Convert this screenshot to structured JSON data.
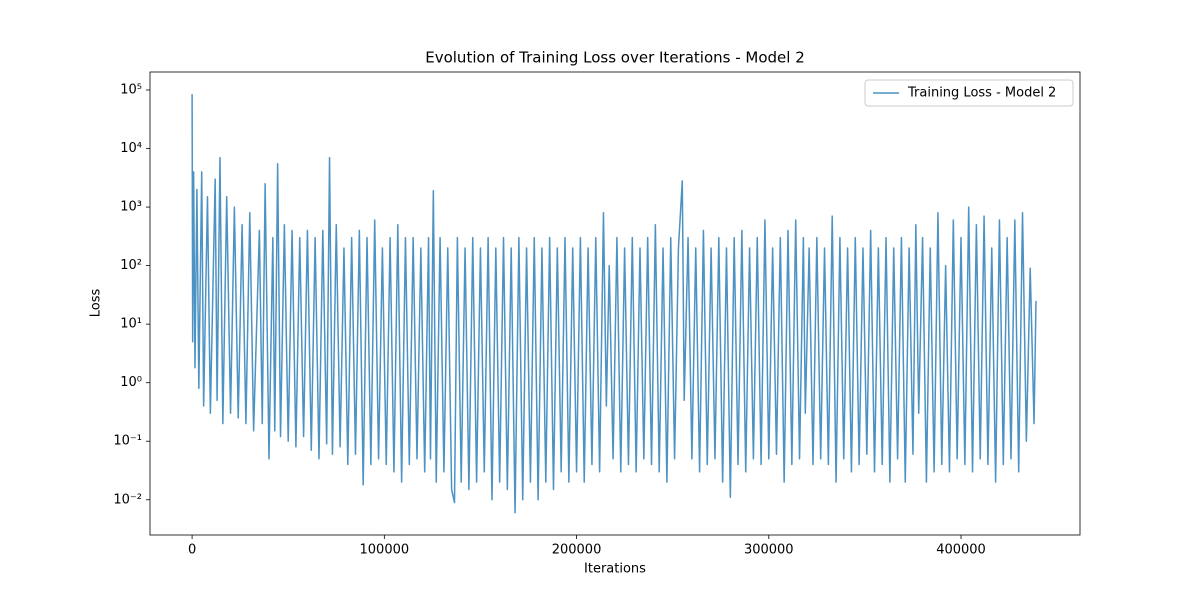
{
  "chart_data": {
    "type": "line",
    "title": "Evolution of Training Loss over Iterations - Model 2",
    "xlabel": "Iterations",
    "ylabel": "Loss",
    "log_y": true,
    "legend": "upper right",
    "alpha": 0.8,
    "xlim": [
      -21900,
      461900
    ],
    "ylim": [
      0.0025,
      203000
    ],
    "xticks": [
      0,
      100000,
      200000,
      300000,
      400000
    ],
    "yticks": [
      {
        "value": 0.01,
        "label": "10⁻²"
      },
      {
        "value": 0.1,
        "label": "10⁻¹"
      },
      {
        "value": 1,
        "label": "10⁰"
      },
      {
        "value": 10,
        "label": "10¹"
      },
      {
        "value": 100,
        "label": "10²"
      },
      {
        "value": 1000,
        "label": "10³"
      },
      {
        "value": 10000,
        "label": "10⁴"
      },
      {
        "value": 100000,
        "label": "10⁵"
      }
    ],
    "x": [
      0,
      300,
      800,
      1500,
      2500,
      3500,
      5000,
      6000,
      8000,
      9500,
      12000,
      13000,
      14500,
      16000,
      18000,
      20000,
      22000,
      24000,
      26000,
      28000,
      30000,
      32000,
      35000,
      36500,
      38000,
      40000,
      42000,
      43000,
      44500,
      46000,
      48000,
      50000,
      52000,
      54000,
      56000,
      58000,
      60000,
      62000,
      64000,
      66000,
      68000,
      70000,
      71500,
      73000,
      75000,
      77000,
      79000,
      81000,
      83000,
      85000,
      87000,
      89000,
      91000,
      93000,
      95000,
      97000,
      99000,
      101000,
      103000,
      105000,
      107000,
      109000,
      111000,
      113000,
      115000,
      117000,
      119000,
      121000,
      123000,
      124000,
      125500,
      127000,
      129000,
      131000,
      133000,
      135000,
      136500,
      138000,
      140000,
      142000,
      144000,
      146000,
      148000,
      150000,
      152000,
      154000,
      156000,
      158000,
      160000,
      162000,
      164000,
      166000,
      168000,
      170000,
      172000,
      174000,
      176000,
      178000,
      180000,
      182000,
      184000,
      186000,
      188000,
      190000,
      192000,
      194000,
      196000,
      198000,
      200000,
      202000,
      204000,
      206000,
      208000,
      210000,
      212000,
      214000,
      215500,
      217000,
      219000,
      221000,
      223000,
      225000,
      227000,
      229000,
      231000,
      233000,
      235000,
      237000,
      239000,
      241000,
      243000,
      245000,
      247000,
      249000,
      251000,
      253000,
      255000,
      256000,
      258000,
      260000,
      262000,
      264000,
      266000,
      268000,
      270000,
      272000,
      274000,
      276000,
      278000,
      280000,
      282000,
      284000,
      286000,
      288000,
      290000,
      292000,
      294000,
      296000,
      298000,
      300000,
      302000,
      304000,
      306000,
      308000,
      310000,
      312000,
      314000,
      316000,
      318000,
      319000,
      321000,
      323000,
      325000,
      327000,
      329000,
      331000,
      333000,
      335000,
      337000,
      339000,
      341000,
      343000,
      345000,
      347000,
      349000,
      351000,
      353000,
      355000,
      357000,
      359000,
      361000,
      363000,
      365000,
      367000,
      369000,
      371000,
      373000,
      375000,
      376500,
      378000,
      380000,
      382000,
      384000,
      386000,
      388000,
      390000,
      392000,
      394000,
      396000,
      398000,
      400000,
      402000,
      404000,
      406000,
      408000,
      410000,
      412000,
      414000,
      416000,
      418000,
      420000,
      422000,
      424000,
      426000,
      428000,
      430000,
      432000,
      434000,
      436000,
      438000,
      439000
    ],
    "series": [
      {
        "name": "Training Loss - Model 2",
        "color": "#1f77b4",
        "values": [
          85000,
          5,
          4000,
          1.8,
          2000,
          0.8,
          4000,
          0.4,
          1500,
          0.3,
          3000,
          0.5,
          7000,
          0.2,
          1500,
          0.3,
          1000,
          0.25,
          500,
          0.2,
          800,
          0.15,
          400,
          0.2,
          2500,
          0.05,
          300,
          0.15,
          5500,
          0.12,
          500,
          0.1,
          400,
          0.08,
          300,
          0.12,
          400,
          0.07,
          300,
          0.05,
          400,
          0.09,
          7000,
          0.06,
          500,
          0.08,
          200,
          0.04,
          300,
          0.06,
          400,
          0.018,
          300,
          0.04,
          600,
          0.05,
          200,
          0.04,
          300,
          0.03,
          500,
          0.02,
          300,
          0.04,
          300,
          0.05,
          200,
          0.03,
          300,
          0.05,
          1900,
          0.02,
          300,
          0.03,
          200,
          0.015,
          0.009,
          300,
          0.02,
          200,
          0.015,
          300,
          0.02,
          200,
          0.03,
          300,
          0.01,
          200,
          0.02,
          300,
          0.015,
          200,
          0.006,
          300,
          0.01,
          200,
          0.02,
          300,
          0.01,
          200,
          0.02,
          300,
          0.015,
          200,
          0.03,
          300,
          0.02,
          200,
          0.03,
          300,
          0.02,
          200,
          0.04,
          300,
          0.03,
          800,
          0.4,
          100,
          0.05,
          300,
          0.03,
          200,
          0.04,
          300,
          0.03,
          200,
          0.05,
          300,
          0.04,
          500,
          0.03,
          200,
          0.02,
          300,
          0.05,
          200,
          2800,
          0.5,
          300,
          0.05,
          200,
          0.03,
          400,
          0.04,
          200,
          0.05,
          300,
          0.02,
          200,
          0.011,
          300,
          0.04,
          400,
          0.03,
          200,
          0.05,
          300,
          0.04,
          600,
          0.05,
          200,
          0.06,
          300,
          0.02,
          400,
          0.04,
          600,
          0.05,
          300,
          0.3,
          200,
          0.04,
          300,
          0.05,
          200,
          0.04,
          700,
          0.02,
          300,
          0.05,
          200,
          0.03,
          300,
          0.04,
          200,
          0.06,
          400,
          0.03,
          200,
          0.04,
          300,
          0.02,
          200,
          0.05,
          300,
          0.02,
          200,
          0.06,
          500,
          0.3,
          300,
          0.02,
          200,
          0.03,
          800,
          0.04,
          100,
          0.03,
          600,
          0.05,
          300,
          0.04,
          1000,
          0.03,
          500,
          0.05,
          700,
          0.04,
          200,
          0.02,
          600,
          0.04,
          300,
          0.05,
          600,
          0.03,
          800,
          0.1,
          90,
          0.2,
          25
        ]
      }
    ]
  }
}
